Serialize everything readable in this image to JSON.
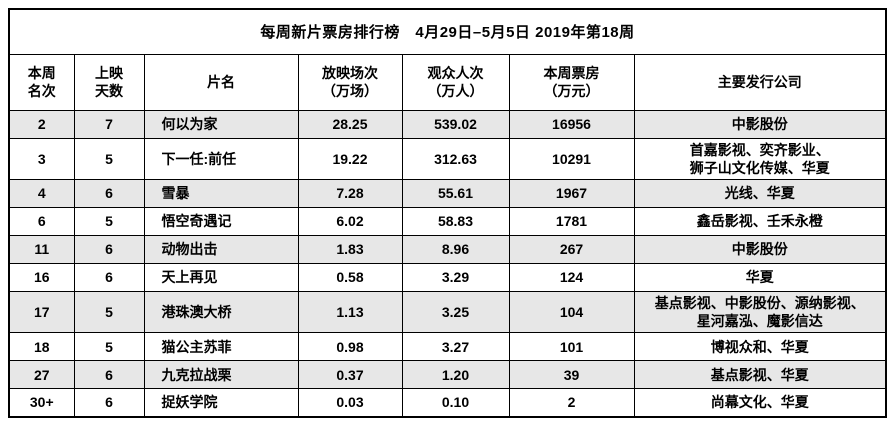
{
  "table": {
    "title": "每周新片票房排行榜　4月29日–5月5日 2019年第18周",
    "columns": [
      "本周\n名次",
      "上映\n天数",
      "片名",
      "放映场次\n（万场）",
      "观众人次\n（万人）",
      "本周票房\n（万元）",
      "主要发行公司"
    ],
    "rows": [
      {
        "rank": "2",
        "days": "7",
        "title": "何以为家",
        "screenings": "28.25",
        "audience": "539.02",
        "box_office": "16956",
        "distributors": "中影股份"
      },
      {
        "rank": "3",
        "days": "5",
        "title": "下一任:前任",
        "screenings": "19.22",
        "audience": "312.63",
        "box_office": "10291",
        "distributors": "首嘉影视、奕齐影业、\n狮子山文化传媒、华夏"
      },
      {
        "rank": "4",
        "days": "6",
        "title": "雪暴",
        "screenings": "7.28",
        "audience": "55.61",
        "box_office": "1967",
        "distributors": "光线、华夏"
      },
      {
        "rank": "6",
        "days": "5",
        "title": "悟空奇遇记",
        "screenings": "6.02",
        "audience": "58.83",
        "box_office": "1781",
        "distributors": "鑫岳影视、壬禾永橙"
      },
      {
        "rank": "11",
        "days": "6",
        "title": "动物出击",
        "screenings": "1.83",
        "audience": "8.96",
        "box_office": "267",
        "distributors": "中影股份"
      },
      {
        "rank": "16",
        "days": "6",
        "title": "天上再见",
        "screenings": "0.58",
        "audience": "3.29",
        "box_office": "124",
        "distributors": "华夏"
      },
      {
        "rank": "17",
        "days": "5",
        "title": "港珠澳大桥",
        "screenings": "1.13",
        "audience": "3.25",
        "box_office": "104",
        "distributors": "基点影视、中影股份、源纳影视、\n星河嘉泓、魔影信达"
      },
      {
        "rank": "18",
        "days": "5",
        "title": "猫公主苏菲",
        "screenings": "0.98",
        "audience": "3.27",
        "box_office": "101",
        "distributors": "博视众和、华夏"
      },
      {
        "rank": "27",
        "days": "6",
        "title": "九克拉战栗",
        "screenings": "0.37",
        "audience": "1.20",
        "box_office": "39",
        "distributors": "基点影视、华夏"
      },
      {
        "rank": "30+",
        "days": "6",
        "title": "捉妖学院",
        "screenings": "0.03",
        "audience": "0.10",
        "box_office": "2",
        "distributors": "尚幕文化、华夏"
      }
    ],
    "colors": {
      "shaded_row": "#e7e7e7",
      "border": "#000000",
      "background": "#ffffff",
      "text": "#000000"
    }
  }
}
